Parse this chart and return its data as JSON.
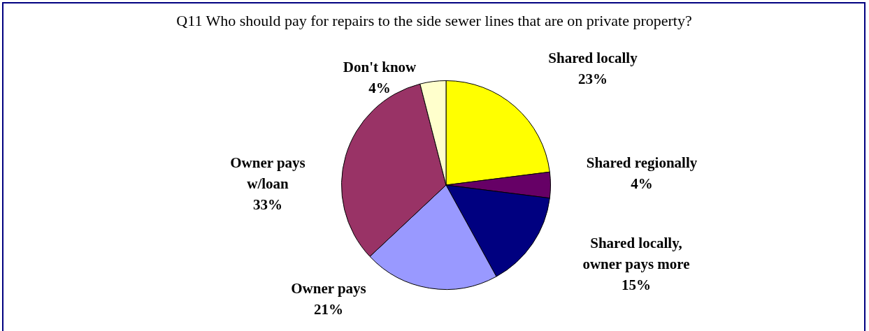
{
  "chart_data": {
    "type": "pie",
    "title": "Q11 Who should pay for repairs to the side sewer lines that are on private property?",
    "categories": [
      "Shared locally",
      "Shared regionally",
      "Shared locally, owner pays more",
      "Owner pays",
      "Owner pays w/loan",
      "Don't know"
    ],
    "values": [
      23,
      4,
      15,
      21,
      33,
      4
    ],
    "value_labels": [
      "23%",
      "4%",
      "15%",
      "21%",
      "33%",
      "4%"
    ],
    "colors": [
      "#ffff00",
      "#660066",
      "#000080",
      "#9999ff",
      "#993366",
      "#ffffcc"
    ],
    "legend": false
  }
}
